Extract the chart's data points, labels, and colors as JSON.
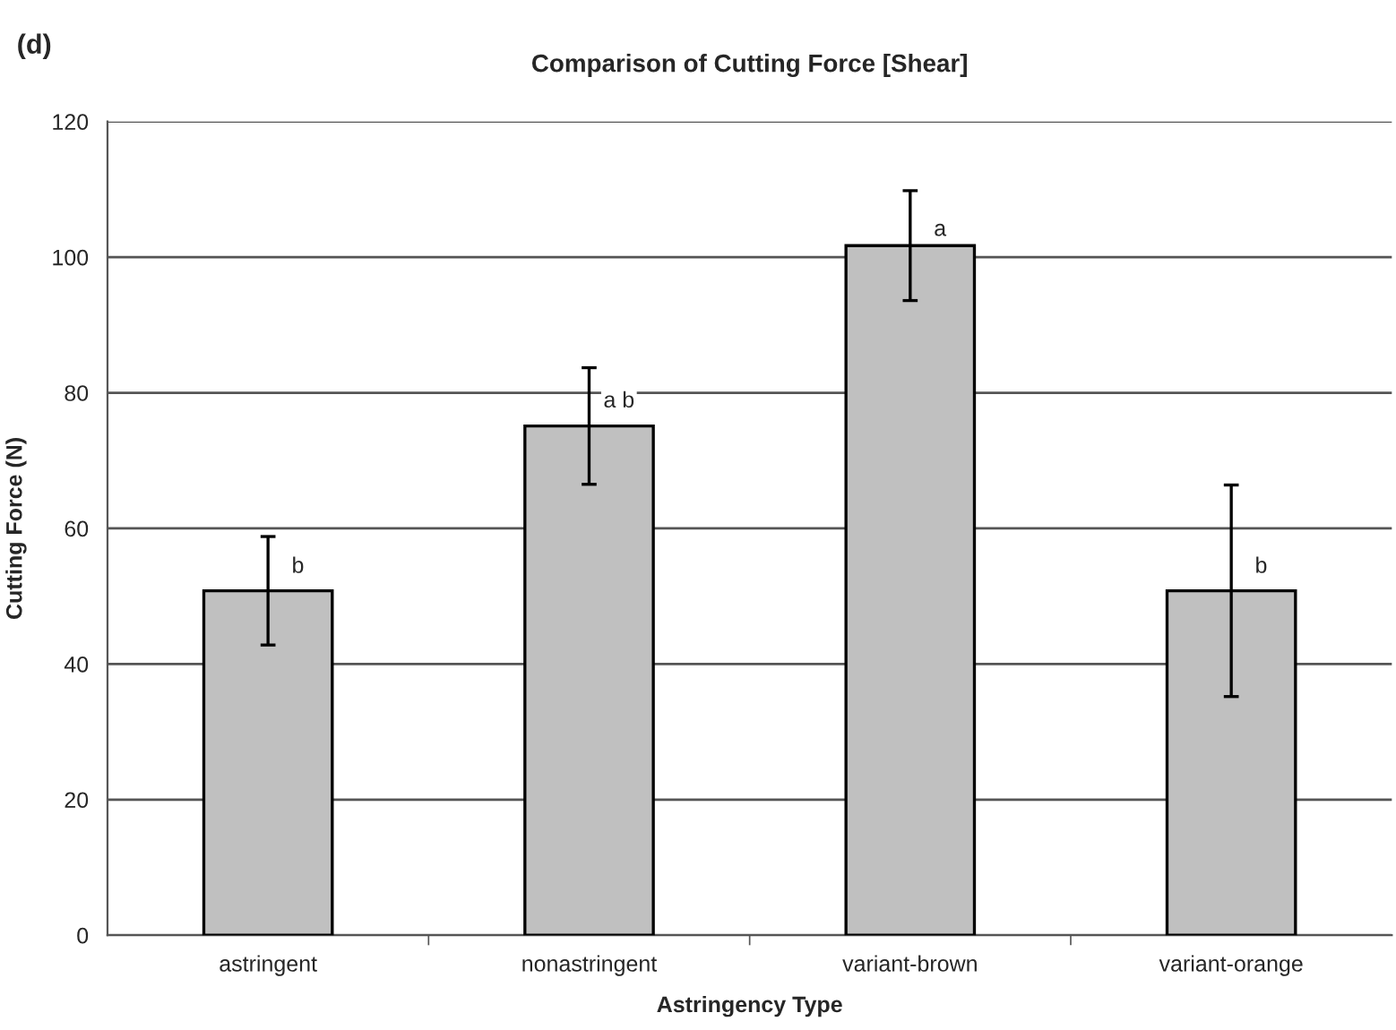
{
  "chart_data": {
    "type": "bar",
    "title": "Comparison of Cutting Force [Shear]",
    "xlabel": "Astringency Type",
    "ylabel": "Cutting Force (N)",
    "categories": [
      "astringent",
      "nonastringent",
      "variant-brown",
      "variant-orange"
    ],
    "values": [
      50.8,
      75.1,
      101.7,
      50.8
    ],
    "errors": [
      8.0,
      8.6,
      8.1,
      15.6
    ],
    "color": "#c0c0c0",
    "ylim": [
      0,
      120
    ],
    "yticks": [
      0,
      20,
      40,
      60,
      80,
      100,
      120
    ],
    "grid": "y",
    "legend": false,
    "annotations": [
      "(d)",
      {
        "text": "b",
        "x": "astringent",
        "y": 54.3
      },
      {
        "text": "a b",
        "x": "nonastringent",
        "y": 78.7
      },
      {
        "text": "a",
        "x": "variant-brown",
        "y": 104
      },
      {
        "text": "b",
        "x": "variant-orange",
        "y": 54.3
      }
    ]
  }
}
